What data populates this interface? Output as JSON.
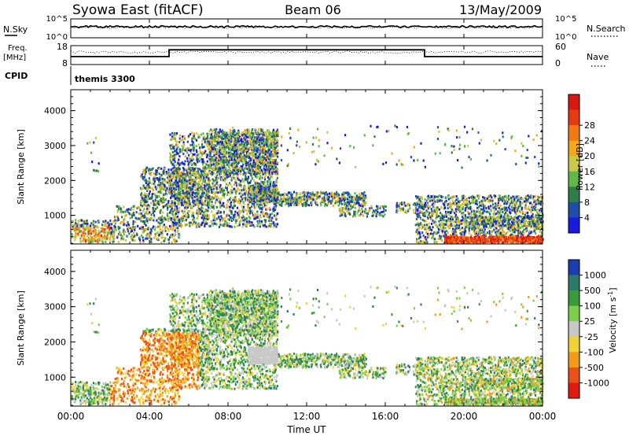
{
  "header": {
    "title_left": "Syowa East (fitACF)",
    "title_center": "Beam 06",
    "title_right": "13/May/2009"
  },
  "chart_data": [
    {
      "type": "line",
      "panel": "noise",
      "labels": {
        "left_top": "N.Sky",
        "left_bottom": "",
        "right_top": "N.Search"
      },
      "yticks": [
        "10^5",
        "10^0"
      ],
      "yticks_right": [
        "10^5",
        "10^0"
      ],
      "series": [
        {
          "name": "N.Sky",
          "style": "solid",
          "level": 0.6
        },
        {
          "name": "N.Search",
          "style": "dotted",
          "level": 0.6
        }
      ]
    },
    {
      "type": "line",
      "panel": "frequency",
      "labels": {
        "left_top": "Freq.",
        "left_bottom": "[MHz]",
        "right": "Nave",
        "cpid": "CPID"
      },
      "yticks": [
        "18",
        "8"
      ],
      "yticks_right": [
        "60",
        "0"
      ],
      "freq_steps": [
        {
          "from_hour": 0,
          "to_hour": 5,
          "level": 0.42
        },
        {
          "from_hour": 5,
          "to_hour": 18,
          "level": 0.78
        },
        {
          "from_hour": 18,
          "to_hour": 24,
          "level": 0.42
        }
      ],
      "nave_level": 0.72,
      "cpid_label": "themis 3300"
    },
    {
      "type": "heatmap",
      "panel": "power",
      "ylabel": "Slant Range [km]",
      "yticks": [
        1000,
        2000,
        3000,
        4000
      ],
      "ylim": [
        180,
        4600
      ],
      "colorbar": {
        "label": "Power [dB]",
        "ticks": [
          "4",
          "8",
          "12",
          "16",
          "20",
          "24",
          "28"
        ],
        "colors": [
          "#1a1adc",
          "#1f4ea8",
          "#2f7d4a",
          "#5fb84a",
          "#c8c84a",
          "#f2a81a",
          "#f07a12",
          "#e63a10",
          "#d71912"
        ]
      }
    },
    {
      "type": "heatmap",
      "panel": "velocity",
      "ylabel": "Slant Range [km]",
      "yticks": [
        1000,
        2000,
        3000,
        4000
      ],
      "ylim": [
        180,
        4600
      ],
      "colorbar": {
        "label": "Velocity [m s",
        "label_sup": "-1",
        "label_end": "]",
        "ticks": [
          "1000",
          "500",
          "100",
          "25",
          "-25",
          "-100",
          "-500",
          "-1000"
        ],
        "colors": [
          "#1a3fb3",
          "#2e7a68",
          "#3a9a3a",
          "#7dd04a",
          "#c8c8c8",
          "#f2d23a",
          "#f29a1a",
          "#e8521a",
          "#e01b12"
        ]
      }
    }
  ],
  "xaxis": {
    "ticks": [
      "00:00",
      "04:00",
      "08:00",
      "12:00",
      "16:00",
      "20:00",
      "00:00"
    ],
    "label": "Time UT"
  }
}
